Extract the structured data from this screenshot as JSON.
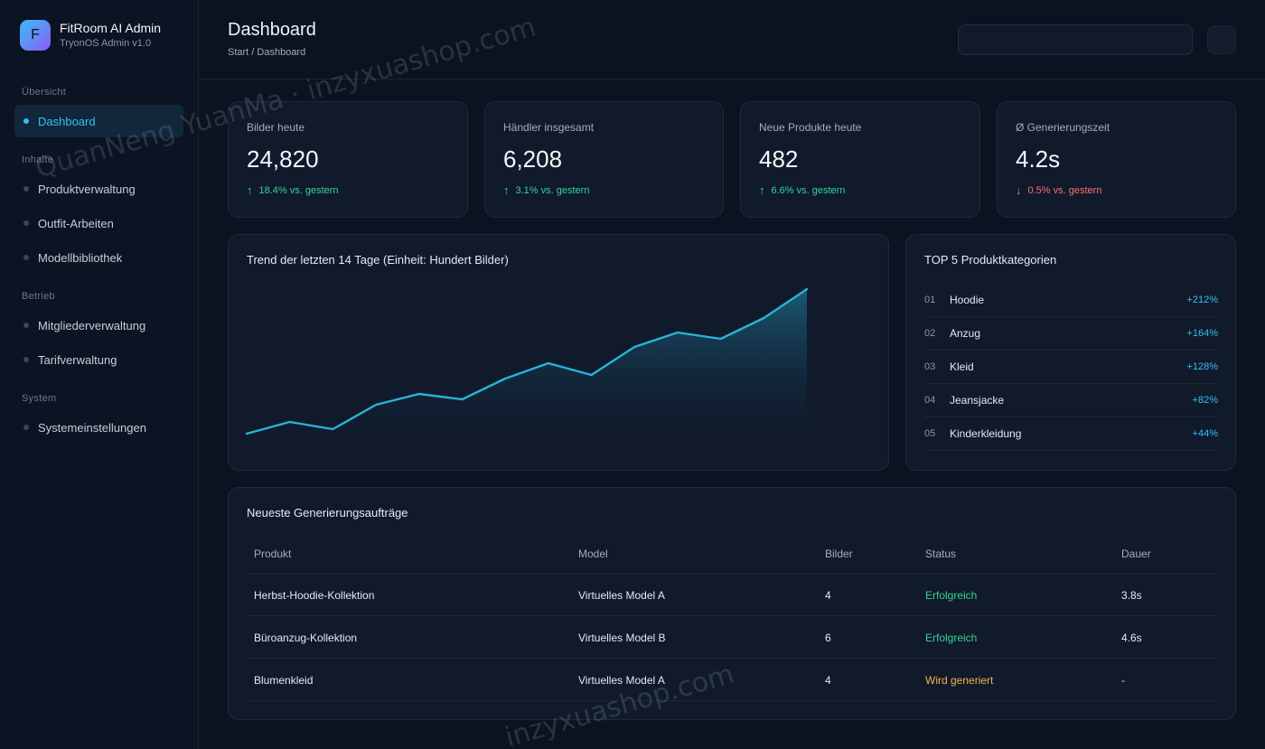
{
  "brand": {
    "logo_letter": "F",
    "name": "FitRoom AI Admin",
    "subtitle": "TryonOS Admin v1.0"
  },
  "sidebar": {
    "sections": [
      "Übersicht",
      "Inhalte",
      "Betrieb",
      "System"
    ],
    "items": [
      {
        "label": "Dashboard",
        "active": true
      },
      {
        "label": "Produktverwaltung",
        "active": false
      },
      {
        "label": "Outfit-Arbeiten",
        "active": false
      },
      {
        "label": "Modellbibliothek",
        "active": false
      },
      {
        "label": "Mitgliederverwaltung",
        "active": false
      },
      {
        "label": "Tarifverwaltung",
        "active": false
      },
      {
        "label": "Systemeinstellungen",
        "active": false
      }
    ]
  },
  "header": {
    "title": "Dashboard",
    "breadcrumb": "Start / Dashboard",
    "search_placeholder": ""
  },
  "stats": [
    {
      "label": "Bilder heute",
      "value": "24,820",
      "arrow": "↑",
      "change": "18.4% vs. gestern",
      "trend": "up"
    },
    {
      "label": "Händler insgesamt",
      "value": "6,208",
      "arrow": "↑",
      "change": "3.1% vs. gestern",
      "trend": "up"
    },
    {
      "label": "Neue Produkte heute",
      "value": "482",
      "arrow": "↑",
      "change": "6.6% vs. gestern",
      "trend": "up"
    },
    {
      "label": "Ø Generierungszeit",
      "value": "4.2s",
      "arrow": "↓",
      "change": "0.5% vs. gestern",
      "trend": "down"
    }
  ],
  "trend_card": {
    "title": "Trend der letzten 14 Tage (Einheit: Hundert Bilder)"
  },
  "chart_data": {
    "type": "area",
    "title": "Trend der letzten 14 Tage (Einheit: Hundert Bilder)",
    "x": [
      1,
      2,
      3,
      4,
      5,
      6,
      7,
      8,
      9,
      10,
      11,
      12,
      13,
      14
    ],
    "values": [
      160,
      173,
      165,
      192,
      204,
      198,
      221,
      238,
      225,
      256,
      272,
      265,
      288,
      320
    ],
    "ylim": [
      150,
      320
    ],
    "grid": false,
    "color": "#2ab3d6"
  },
  "top_categories": {
    "title": "TOP 5 Produktkategorien",
    "items": [
      {
        "rank": "01",
        "name": "Hoodie",
        "growth": "+212%"
      },
      {
        "rank": "02",
        "name": "Anzug",
        "growth": "+164%"
      },
      {
        "rank": "03",
        "name": "Kleid",
        "growth": "+128%"
      },
      {
        "rank": "04",
        "name": "Jeansjacke",
        "growth": "+82%"
      },
      {
        "rank": "05",
        "name": "Kinderkleidung",
        "growth": "+44%"
      }
    ]
  },
  "jobs": {
    "title": "Neueste Generierungsaufträge",
    "columns": [
      "Produkt",
      "Model",
      "Bilder",
      "Status",
      "Dauer"
    ],
    "rows": [
      {
        "product": "Herbst-Hoodie-Kollektion",
        "model": "Virtuelles Model A",
        "images": "4",
        "status": "Erfolgreich",
        "status_type": "success",
        "duration": "3.8s"
      },
      {
        "product": "Büroanzug-Kollektion",
        "model": "Virtuelles Model B",
        "images": "6",
        "status": "Erfolgreich",
        "status_type": "success",
        "duration": "4.6s"
      },
      {
        "product": "Blumenkleid",
        "model": "Virtuelles Model A",
        "images": "4",
        "status": "Wird generiert",
        "status_type": "pending",
        "duration": "-"
      }
    ]
  },
  "watermark": {
    "text_1": "QuanNeng YuanMa · inzyxuashop.com",
    "text_2": "inzyxuashop.com"
  },
  "colors": {
    "accent": "#38bdf8",
    "success": "#34d399",
    "danger": "#f87171",
    "warning": "#f5b14c",
    "background": "#0b1220",
    "card": "#101a2b"
  }
}
